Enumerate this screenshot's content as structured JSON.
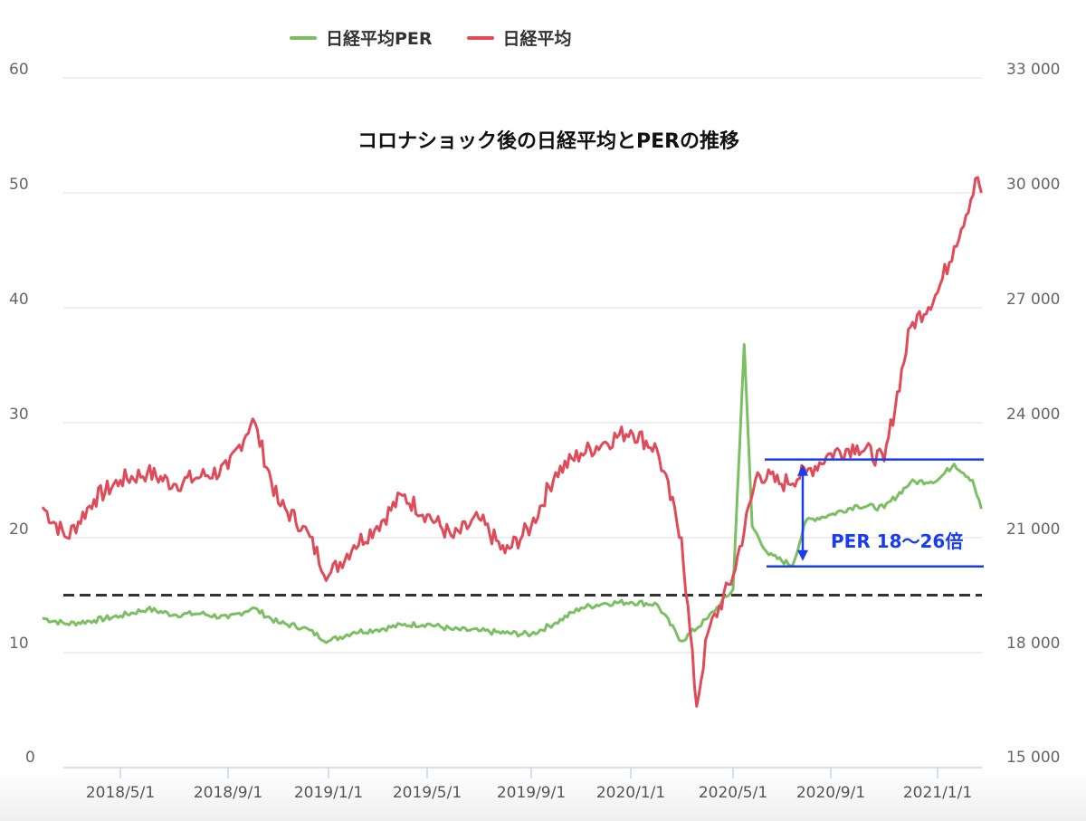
{
  "chart_data": {
    "type": "line",
    "title": "コロナショック後の日経平均とPERの推移",
    "legend": [
      "日経平均PER",
      "日経平均"
    ],
    "legend_position": "top",
    "grid": true,
    "x_ticks": [
      "2018/5/1",
      "2018/9/1",
      "2019/1/1",
      "2019/5/1",
      "2019/9/1",
      "2020/1/1",
      "2020/5/1",
      "2020/9/1",
      "2021/1/1"
    ],
    "y_left": {
      "label": "",
      "range": [
        0,
        60
      ],
      "ticks": [
        0,
        10,
        20,
        30,
        40,
        50,
        60
      ]
    },
    "y_right": {
      "label": "",
      "range": [
        15000,
        33000
      ],
      "ticks": [
        "15 000",
        "18 000",
        "21 000",
        "24 000",
        "27 000",
        "30 000",
        "33 000"
      ]
    },
    "series": [
      {
        "name": "日経平均PER",
        "axis": "left",
        "color": "#7bbf63",
        "points": [
          [
            "2018/2/1",
            13.0
          ],
          [
            "2018/3/1",
            12.5
          ],
          [
            "2018/4/1",
            12.8
          ],
          [
            "2018/5/1",
            13.2
          ],
          [
            "2018/6/1",
            13.8
          ],
          [
            "2018/7/1",
            13.3
          ],
          [
            "2018/8/1",
            13.4
          ],
          [
            "2018/9/1",
            13.0
          ],
          [
            "2018/10/1",
            13.9
          ],
          [
            "2018/11/1",
            12.6
          ],
          [
            "2018/12/1",
            12.2
          ],
          [
            "2019/1/1",
            11.0
          ],
          [
            "2019/2/1",
            11.8
          ],
          [
            "2019/3/1",
            12.0
          ],
          [
            "2019/4/1",
            12.4
          ],
          [
            "2019/5/1",
            12.5
          ],
          [
            "2019/6/1",
            12.0
          ],
          [
            "2019/7/1",
            11.9
          ],
          [
            "2019/8/1",
            11.7
          ],
          [
            "2019/9/1",
            11.6
          ],
          [
            "2019/10/1",
            12.6
          ],
          [
            "2019/11/1",
            13.9
          ],
          [
            "2019/12/1",
            14.3
          ],
          [
            "2020/1/1",
            14.4
          ],
          [
            "2020/2/1",
            14.2
          ],
          [
            "2020/3/1",
            11.0
          ],
          [
            "2020/4/1",
            13.0
          ],
          [
            "2020/5/1",
            15.5
          ],
          [
            "2020/5/15",
            36.8
          ],
          [
            "2020/5/25",
            21.0
          ],
          [
            "2020/6/15",
            18.5
          ],
          [
            "2020/7/15",
            17.6
          ],
          [
            "2020/8/1",
            21.5
          ],
          [
            "2020/9/1",
            22.0
          ],
          [
            "2020/10/1",
            22.8
          ],
          [
            "2020/11/1",
            22.6
          ],
          [
            "2020/12/1",
            24.8
          ],
          [
            "2021/1/1",
            25.0
          ],
          [
            "2021/1/20",
            26.4
          ],
          [
            "2021/2/10",
            25.0
          ],
          [
            "2021/2/20",
            22.5
          ]
        ]
      },
      {
        "name": "日経平均",
        "axis": "right",
        "color": "#e04b5a",
        "points": [
          [
            "2018/2/1",
            21800
          ],
          [
            "2018/3/1",
            21000
          ],
          [
            "2018/4/1",
            22000
          ],
          [
            "2018/5/1",
            22500
          ],
          [
            "2018/6/1",
            22700
          ],
          [
            "2018/7/1",
            22400
          ],
          [
            "2018/8/1",
            22600
          ],
          [
            "2018/9/1",
            22800
          ],
          [
            "2018/10/1",
            24100
          ],
          [
            "2018/11/1",
            21900
          ],
          [
            "2018/12/1",
            21300
          ],
          [
            "2019/1/1",
            20000
          ],
          [
            "2019/2/1",
            20800
          ],
          [
            "2019/3/1",
            21300
          ],
          [
            "2019/4/1",
            22100
          ],
          [
            "2019/5/1",
            21600
          ],
          [
            "2019/6/1",
            21000
          ],
          [
            "2019/7/1",
            21500
          ],
          [
            "2019/8/1",
            20600
          ],
          [
            "2019/9/1",
            21300
          ],
          [
            "2019/10/1",
            22700
          ],
          [
            "2019/11/1",
            23200
          ],
          [
            "2019/12/1",
            23500
          ],
          [
            "2020/1/1",
            23800
          ],
          [
            "2020/2/1",
            23300
          ],
          [
            "2020/3/1",
            21000
          ],
          [
            "2020/3/19",
            16600
          ],
          [
            "2020/4/1",
            18500
          ],
          [
            "2020/5/1",
            20000
          ],
          [
            "2020/6/1",
            22700
          ],
          [
            "2020/7/1",
            22400
          ],
          [
            "2020/8/1",
            22700
          ],
          [
            "2020/9/1",
            23200
          ],
          [
            "2020/10/1",
            23400
          ],
          [
            "2020/11/1",
            23000
          ],
          [
            "2020/12/1",
            26500
          ],
          [
            "2021/1/1",
            27400
          ],
          [
            "2021/1/20",
            28600
          ],
          [
            "2021/2/16",
            30400
          ],
          [
            "2021/2/20",
            30000
          ]
        ]
      }
    ],
    "reference_lines": [
      {
        "type": "dashed",
        "axis": "left",
        "value": 15,
        "color": "#333333"
      }
    ],
    "annotations": [
      {
        "type": "hline",
        "axis": "left",
        "value": 26.8,
        "x_from": "2020/6/1",
        "color": "#1a3cf0"
      },
      {
        "type": "hline",
        "axis": "left",
        "value": 17.5,
        "x_from": "2020/6/1",
        "color": "#1a3cf0"
      },
      {
        "type": "double-arrow",
        "from": 17.5,
        "to": 26.8,
        "color": "#1a3cf0"
      },
      {
        "type": "text",
        "text": "PER 18〜26倍",
        "color": "#1a3cf0"
      }
    ]
  },
  "legend": {
    "items": [
      {
        "label": "日経平均PER",
        "color": "#7bbf63"
      },
      {
        "label": "日経平均",
        "color": "#e04b5a"
      }
    ]
  },
  "axes": {
    "left": [
      "60",
      "50",
      "40",
      "30",
      "20",
      "10",
      "0"
    ],
    "right": [
      "33 000",
      "30 000",
      "27 000",
      "24 000",
      "21 000",
      "18 000",
      "15 000"
    ],
    "x": [
      "2018/5/1",
      "2018/9/1",
      "2019/1/1",
      "2019/5/1",
      "2019/9/1",
      "2020/1/1",
      "2020/5/1",
      "2020/9/1",
      "2021/1/1"
    ]
  },
  "annotation_text": "PER 18〜26倍"
}
